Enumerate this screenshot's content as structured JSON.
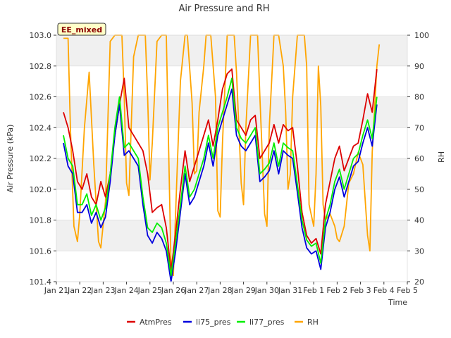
{
  "chart_data": {
    "type": "line",
    "title": "Air Pressure and RH",
    "badge": "EE_mixed",
    "xlabel": "Time",
    "ylabel_left": "Air Pressure (kPa)",
    "ylabel_right": "RH",
    "ylim_left": [
      101.4,
      103.0
    ],
    "ylim_right": [
      20,
      100
    ],
    "xlim": [
      0,
      15
    ],
    "yticks_left": [
      "101.4",
      "101.6",
      "101.8",
      "102.0",
      "102.2",
      "102.4",
      "102.6",
      "102.8",
      "103.0"
    ],
    "yticks_right": [
      "20",
      "30",
      "40",
      "50",
      "60",
      "70",
      "80",
      "90",
      "100"
    ],
    "x_tick_labels": [
      "Jan 21",
      "Jan 22",
      "Jan 23",
      "Jan 24",
      "Jan 25",
      "Jan 26",
      "Jan 27",
      "Jan 28",
      "Jan 29",
      "Jan 30",
      "Jan 31",
      "Feb 1",
      "Feb 2",
      "Feb 3",
      "Feb 4",
      "Feb 5"
    ],
    "grid": true,
    "legend_position": "bottom",
    "series": [
      {
        "name": "AtmPres",
        "axis": "left",
        "color": "#dd0000",
        "points": [
          [
            0.3,
            102.5
          ],
          [
            0.5,
            102.4
          ],
          [
            0.7,
            102.25
          ],
          [
            0.9,
            102.05
          ],
          [
            1.1,
            102.0
          ],
          [
            1.3,
            102.1
          ],
          [
            1.5,
            101.95
          ],
          [
            1.7,
            101.9
          ],
          [
            1.9,
            102.05
          ],
          [
            2.1,
            101.95
          ],
          [
            2.3,
            102.1
          ],
          [
            2.5,
            102.35
          ],
          [
            2.7,
            102.55
          ],
          [
            2.9,
            102.72
          ],
          [
            3.1,
            102.4
          ],
          [
            3.3,
            102.35
          ],
          [
            3.5,
            102.3
          ],
          [
            3.7,
            102.25
          ],
          [
            3.9,
            102.1
          ],
          [
            4.1,
            101.85
          ],
          [
            4.3,
            101.88
          ],
          [
            4.5,
            101.9
          ],
          [
            4.7,
            101.75
          ],
          [
            4.9,
            101.47
          ],
          [
            5.1,
            101.72
          ],
          [
            5.3,
            102.0
          ],
          [
            5.5,
            102.25
          ],
          [
            5.7,
            102.05
          ],
          [
            5.9,
            102.15
          ],
          [
            6.1,
            102.25
          ],
          [
            6.3,
            102.35
          ],
          [
            6.5,
            102.45
          ],
          [
            6.7,
            102.28
          ],
          [
            6.9,
            102.45
          ],
          [
            7.1,
            102.65
          ],
          [
            7.3,
            102.75
          ],
          [
            7.5,
            102.78
          ],
          [
            7.7,
            102.45
          ],
          [
            7.9,
            102.4
          ],
          [
            8.1,
            102.35
          ],
          [
            8.3,
            102.45
          ],
          [
            8.5,
            102.48
          ],
          [
            8.7,
            102.2
          ],
          [
            8.9,
            102.25
          ],
          [
            9.1,
            102.3
          ],
          [
            9.3,
            102.42
          ],
          [
            9.5,
            102.3
          ],
          [
            9.7,
            102.42
          ],
          [
            9.9,
            102.38
          ],
          [
            10.1,
            102.4
          ],
          [
            10.3,
            102.15
          ],
          [
            10.5,
            101.85
          ],
          [
            10.7,
            101.7
          ],
          [
            10.9,
            101.65
          ],
          [
            11.1,
            101.68
          ],
          [
            11.3,
            101.58
          ],
          [
            11.5,
            101.9
          ],
          [
            11.7,
            102.05
          ],
          [
            11.9,
            102.2
          ],
          [
            12.1,
            102.28
          ],
          [
            12.3,
            102.12
          ],
          [
            12.5,
            102.2
          ],
          [
            12.7,
            102.28
          ],
          [
            12.9,
            102.3
          ],
          [
            13.1,
            102.45
          ],
          [
            13.3,
            102.62
          ],
          [
            13.5,
            102.5
          ],
          [
            13.7,
            102.78
          ]
        ]
      },
      {
        "name": "li75_pres",
        "axis": "left",
        "color": "#0000dd",
        "points": [
          [
            0.3,
            102.3
          ],
          [
            0.5,
            102.15
          ],
          [
            0.7,
            102.1
          ],
          [
            0.9,
            101.85
          ],
          [
            1.1,
            101.85
          ],
          [
            1.3,
            101.9
          ],
          [
            1.5,
            101.78
          ],
          [
            1.7,
            101.85
          ],
          [
            1.9,
            101.75
          ],
          [
            2.1,
            101.82
          ],
          [
            2.3,
            102.05
          ],
          [
            2.5,
            102.35
          ],
          [
            2.7,
            102.55
          ],
          [
            2.9,
            102.22
          ],
          [
            3.1,
            102.25
          ],
          [
            3.3,
            102.2
          ],
          [
            3.5,
            102.15
          ],
          [
            3.7,
            101.9
          ],
          [
            3.9,
            101.7
          ],
          [
            4.1,
            101.65
          ],
          [
            4.3,
            101.72
          ],
          [
            4.5,
            101.68
          ],
          [
            4.7,
            101.6
          ],
          [
            4.9,
            101.4
          ],
          [
            5.1,
            101.6
          ],
          [
            5.3,
            101.85
          ],
          [
            5.5,
            102.1
          ],
          [
            5.7,
            101.9
          ],
          [
            5.9,
            101.95
          ],
          [
            6.1,
            102.05
          ],
          [
            6.3,
            102.15
          ],
          [
            6.5,
            102.3
          ],
          [
            6.7,
            102.15
          ],
          [
            6.9,
            102.35
          ],
          [
            7.1,
            102.45
          ],
          [
            7.3,
            102.55
          ],
          [
            7.5,
            102.65
          ],
          [
            7.7,
            102.35
          ],
          [
            7.9,
            102.28
          ],
          [
            8.1,
            102.25
          ],
          [
            8.3,
            102.3
          ],
          [
            8.5,
            102.35
          ],
          [
            8.7,
            102.05
          ],
          [
            8.9,
            102.08
          ],
          [
            9.1,
            102.12
          ],
          [
            9.3,
            102.25
          ],
          [
            9.5,
            102.1
          ],
          [
            9.7,
            102.25
          ],
          [
            9.9,
            102.22
          ],
          [
            10.1,
            102.2
          ],
          [
            10.3,
            101.98
          ],
          [
            10.5,
            101.75
          ],
          [
            10.7,
            101.62
          ],
          [
            10.9,
            101.58
          ],
          [
            11.1,
            101.6
          ],
          [
            11.3,
            101.48
          ],
          [
            11.5,
            101.75
          ],
          [
            11.7,
            101.85
          ],
          [
            11.9,
            102.0
          ],
          [
            12.1,
            102.08
          ],
          [
            12.3,
            101.95
          ],
          [
            12.5,
            102.05
          ],
          [
            12.7,
            102.15
          ],
          [
            12.9,
            102.18
          ],
          [
            13.1,
            102.3
          ],
          [
            13.3,
            102.4
          ],
          [
            13.5,
            102.28
          ],
          [
            13.7,
            102.55
          ]
        ]
      },
      {
        "name": "li77_pres",
        "axis": "left",
        "color": "#00ee00",
        "points": [
          [
            0.3,
            102.35
          ],
          [
            0.5,
            102.2
          ],
          [
            0.7,
            102.15
          ],
          [
            0.9,
            101.9
          ],
          [
            1.1,
            101.9
          ],
          [
            1.3,
            101.97
          ],
          [
            1.5,
            101.83
          ],
          [
            1.7,
            101.9
          ],
          [
            1.9,
            101.8
          ],
          [
            2.1,
            101.88
          ],
          [
            2.3,
            102.1
          ],
          [
            2.5,
            102.4
          ],
          [
            2.7,
            102.6
          ],
          [
            2.9,
            102.27
          ],
          [
            3.1,
            102.3
          ],
          [
            3.3,
            102.25
          ],
          [
            3.5,
            102.2
          ],
          [
            3.7,
            101.95
          ],
          [
            3.9,
            101.75
          ],
          [
            4.1,
            101.72
          ],
          [
            4.3,
            101.78
          ],
          [
            4.5,
            101.75
          ],
          [
            4.7,
            101.65
          ],
          [
            4.9,
            101.44
          ],
          [
            5.1,
            101.66
          ],
          [
            5.3,
            101.9
          ],
          [
            5.5,
            102.15
          ],
          [
            5.7,
            101.95
          ],
          [
            5.9,
            102.0
          ],
          [
            6.1,
            102.1
          ],
          [
            6.3,
            102.2
          ],
          [
            6.5,
            102.35
          ],
          [
            6.7,
            102.2
          ],
          [
            6.9,
            102.4
          ],
          [
            7.1,
            102.5
          ],
          [
            7.3,
            102.6
          ],
          [
            7.5,
            102.72
          ],
          [
            7.7,
            102.4
          ],
          [
            7.9,
            102.33
          ],
          [
            8.1,
            102.3
          ],
          [
            8.3,
            102.35
          ],
          [
            8.5,
            102.4
          ],
          [
            8.7,
            102.1
          ],
          [
            8.9,
            102.13
          ],
          [
            9.1,
            102.17
          ],
          [
            9.3,
            102.3
          ],
          [
            9.5,
            102.15
          ],
          [
            9.7,
            102.3
          ],
          [
            9.9,
            102.27
          ],
          [
            10.1,
            102.25
          ],
          [
            10.3,
            102.03
          ],
          [
            10.5,
            101.8
          ],
          [
            10.7,
            101.67
          ],
          [
            10.9,
            101.63
          ],
          [
            11.1,
            101.65
          ],
          [
            11.3,
            101.52
          ],
          [
            11.5,
            101.8
          ],
          [
            11.7,
            101.9
          ],
          [
            11.9,
            102.05
          ],
          [
            12.1,
            102.13
          ],
          [
            12.3,
            102.0
          ],
          [
            12.5,
            102.1
          ],
          [
            12.7,
            102.2
          ],
          [
            12.9,
            102.23
          ],
          [
            13.1,
            102.35
          ],
          [
            13.3,
            102.45
          ],
          [
            13.5,
            102.33
          ],
          [
            13.7,
            102.6
          ]
        ]
      },
      {
        "name": "RH",
        "axis": "right",
        "color": "#ffa500",
        "points": [
          [
            0.3,
            99
          ],
          [
            0.5,
            99
          ],
          [
            0.6,
            70
          ],
          [
            0.75,
            38
          ],
          [
            0.9,
            33
          ],
          [
            1.0,
            42
          ],
          [
            1.2,
            70
          ],
          [
            1.4,
            88
          ],
          [
            1.6,
            58
          ],
          [
            1.8,
            33
          ],
          [
            1.9,
            31
          ],
          [
            2.1,
            46
          ],
          [
            2.3,
            98
          ],
          [
            2.5,
            100
          ],
          [
            2.8,
            100
          ],
          [
            2.9,
            80
          ],
          [
            3.0,
            52
          ],
          [
            3.1,
            48
          ],
          [
            3.3,
            93
          ],
          [
            3.5,
            100
          ],
          [
            3.8,
            100
          ],
          [
            3.9,
            80
          ],
          [
            4.0,
            53
          ],
          [
            4.1,
            65
          ],
          [
            4.3,
            98
          ],
          [
            4.5,
            100
          ],
          [
            4.7,
            100
          ],
          [
            4.9,
            25
          ],
          [
            5.0,
            22
          ],
          [
            5.1,
            43
          ],
          [
            5.3,
            85
          ],
          [
            5.5,
            100
          ],
          [
            5.6,
            100
          ],
          [
            5.8,
            78
          ],
          [
            5.9,
            55
          ],
          [
            6.0,
            56
          ],
          [
            6.1,
            75
          ],
          [
            6.3,
            90
          ],
          [
            6.4,
            100
          ],
          [
            6.6,
            100
          ],
          [
            6.8,
            80
          ],
          [
            6.9,
            43
          ],
          [
            7.0,
            41
          ],
          [
            7.1,
            65
          ],
          [
            7.3,
            100
          ],
          [
            7.6,
            100
          ],
          [
            7.7,
            88
          ],
          [
            7.9,
            52
          ],
          [
            8.0,
            45
          ],
          [
            8.1,
            70
          ],
          [
            8.3,
            100
          ],
          [
            8.6,
            100
          ],
          [
            8.7,
            80
          ],
          [
            8.9,
            42
          ],
          [
            9.0,
            38
          ],
          [
            9.1,
            70
          ],
          [
            9.3,
            100
          ],
          [
            9.5,
            100
          ],
          [
            9.7,
            90
          ],
          [
            9.8,
            75
          ],
          [
            9.9,
            50
          ],
          [
            10.0,
            55
          ],
          [
            10.1,
            80
          ],
          [
            10.3,
            100
          ],
          [
            10.6,
            100
          ],
          [
            10.7,
            90
          ],
          [
            10.8,
            45
          ],
          [
            11.0,
            38
          ],
          [
            11.1,
            55
          ],
          [
            11.2,
            90
          ],
          [
            11.3,
            77
          ],
          [
            11.4,
            45
          ],
          [
            11.5,
            40
          ],
          [
            11.7,
            42
          ],
          [
            11.9,
            38
          ],
          [
            12.0,
            34
          ],
          [
            12.1,
            33
          ],
          [
            12.3,
            38
          ],
          [
            12.5,
            52
          ],
          [
            12.7,
            55
          ],
          [
            12.9,
            62
          ],
          [
            13.1,
            58
          ],
          [
            13.3,
            35
          ],
          [
            13.4,
            30
          ],
          [
            13.5,
            62
          ],
          [
            13.7,
            90
          ],
          [
            13.8,
            97
          ]
        ]
      }
    ]
  }
}
